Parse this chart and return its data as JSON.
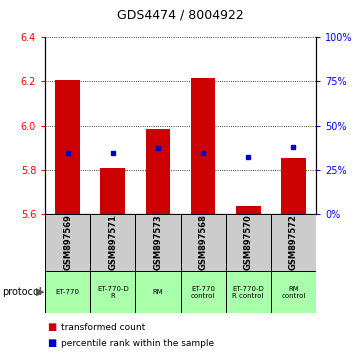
{
  "title": "GDS4474 / 8004922",
  "samples": [
    "GSM897569",
    "GSM897571",
    "GSM897573",
    "GSM897568",
    "GSM897570",
    "GSM897572"
  ],
  "bar_bottoms": [
    5.6,
    5.6,
    5.6,
    5.6,
    5.6,
    5.6
  ],
  "bar_tops": [
    6.205,
    5.81,
    5.985,
    6.215,
    5.635,
    5.855
  ],
  "percentile_values": [
    5.875,
    5.875,
    5.9,
    5.875,
    5.86,
    5.905
  ],
  "ylim_left": [
    5.6,
    6.4
  ],
  "ylim_right": [
    0,
    100
  ],
  "yticks_left": [
    5.6,
    5.8,
    6.0,
    6.2,
    6.4
  ],
  "yticks_right": [
    0,
    25,
    50,
    75,
    100
  ],
  "bar_color": "#cc0000",
  "percentile_color": "#0000cc",
  "protocol_labels": [
    "ET-770",
    "ET-770-D\nR",
    "RM",
    "ET-770\ncontrol",
    "ET-770-D\nR control",
    "RM\ncontrol"
  ],
  "protocol_bg_color": "#aaffaa",
  "sample_bg_color": "#cccccc",
  "title_fontsize": 9
}
